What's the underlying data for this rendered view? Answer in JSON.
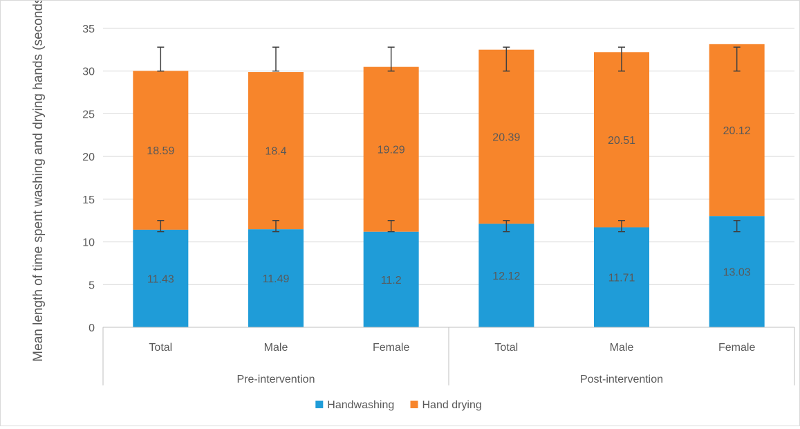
{
  "chart_data": {
    "type": "bar",
    "stacked": true,
    "ylabel": "Mean length of time spent washing and drying hands (seconds)",
    "ylim": [
      0,
      35
    ],
    "yticks": [
      "0",
      "5",
      "10",
      "15",
      "20",
      "25",
      "30",
      "35"
    ],
    "grid": true,
    "legend_position": "bottom",
    "groups": [
      {
        "label": "Pre-intervention",
        "categories": [
          "Total",
          "Male",
          "Female"
        ]
      },
      {
        "label": "Post-intervention",
        "categories": [
          "Total",
          "Male",
          "Female"
        ]
      }
    ],
    "categories": [
      "Total",
      "Male",
      "Female",
      "Total",
      "Male",
      "Female"
    ],
    "series": [
      {
        "name": "Handwashing",
        "color": "#1f9cd8",
        "values": [
          11.43,
          11.49,
          11.2,
          12.12,
          11.71,
          13.03
        ],
        "labels": [
          "11.43",
          "11.49",
          "11.2",
          "12.12",
          "11.71",
          "13.03"
        ],
        "error_bar": {
          "low": [
            11.2,
            11.2,
            11.2,
            11.2,
            11.2,
            11.2
          ],
          "high": [
            12.5,
            12.5,
            12.5,
            12.5,
            12.5,
            12.5
          ]
        }
      },
      {
        "name": "Hand drying",
        "color": "#f7852b",
        "values": [
          18.59,
          18.4,
          19.29,
          20.39,
          20.51,
          20.12
        ],
        "labels": [
          "18.59",
          "18.4",
          "19.29",
          "20.39",
          "20.51",
          "20.12"
        ],
        "error_bar": {
          "low": [
            30.0,
            30.0,
            30.0,
            30.0,
            30.0,
            30.0
          ],
          "high": [
            32.8,
            32.8,
            32.8,
            32.8,
            32.8,
            32.8
          ]
        }
      }
    ]
  }
}
